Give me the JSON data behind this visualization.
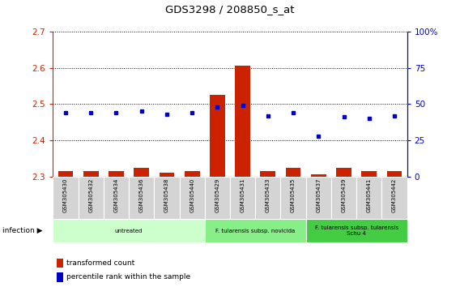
{
  "title": "GDS3298 / 208850_s_at",
  "samples": [
    "GSM305430",
    "GSM305432",
    "GSM305434",
    "GSM305436",
    "GSM305438",
    "GSM305440",
    "GSM305429",
    "GSM305431",
    "GSM305433",
    "GSM305435",
    "GSM305437",
    "GSM305439",
    "GSM305441",
    "GSM305442"
  ],
  "red_values": [
    2.315,
    2.315,
    2.315,
    2.325,
    2.31,
    2.315,
    2.525,
    2.605,
    2.315,
    2.325,
    2.305,
    2.325,
    2.315,
    2.315
  ],
  "blue_values": [
    44,
    44,
    44,
    45,
    43,
    44,
    48,
    49,
    42,
    44,
    28,
    41,
    40,
    42
  ],
  "ylim_left": [
    2.3,
    2.7
  ],
  "ylim_right": [
    0,
    100
  ],
  "yticks_left": [
    2.3,
    2.4,
    2.5,
    2.6,
    2.7
  ],
  "yticks_right": [
    0,
    25,
    50,
    75,
    100
  ],
  "bar_color": "#cc2200",
  "dot_color": "#0000cc",
  "bar_bottom": 2.3,
  "groups": [
    {
      "label": "untreated",
      "start": 0,
      "end": 6,
      "color": "#ccffcc"
    },
    {
      "label": "F. tularensis subsp. novicida",
      "start": 6,
      "end": 10,
      "color": "#88ee88"
    },
    {
      "label": "F. tularensis subsp. tularensis\nSchu 4",
      "start": 10,
      "end": 14,
      "color": "#44cc44"
    }
  ],
  "infection_label": "infection",
  "legend_red": "transformed count",
  "legend_blue": "percentile rank within the sample",
  "axis_label_color_left": "#cc2200",
  "axis_label_color_right": "#0000cc"
}
